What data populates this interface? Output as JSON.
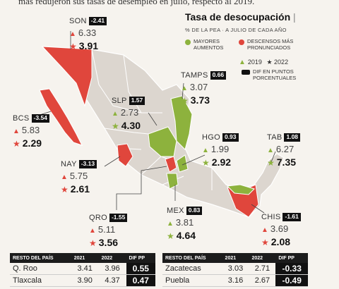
{
  "headline": "más redujeron sus tasas de desempleo en julio, respecto al 2019.",
  "legend": {
    "title": "Tasa de desocupación",
    "subtitle": "% DE LA PEA · A JULIO DE CADA AÑO",
    "increase_label": "MAYORES AUMENTOS",
    "decrease_label": "DESCENSOS MÁS PRONUNCIADOS",
    "year_2019": "2019",
    "year_2022": "2022",
    "dif_label": "DIF EN PUNTOS PORCENTUALES"
  },
  "colors": {
    "increase": "#8db23d",
    "decrease": "#e0463c",
    "map_base": "#dcd6cf",
    "highlight_black": "#111111"
  },
  "chart_data": {
    "type": "table",
    "description_units": "% de la PEA",
    "states": [
      {
        "key": "son",
        "name": "SON",
        "v2019": "6.33",
        "v2022": "3.91",
        "dif": "-2.41",
        "trend": "decrease"
      },
      {
        "key": "bcs",
        "name": "BCS",
        "v2019": "5.83",
        "v2022": "2.29",
        "dif": "-3.54",
        "trend": "decrease"
      },
      {
        "key": "nay",
        "name": "NAY",
        "v2019": "5.75",
        "v2022": "2.61",
        "dif": "-3.13",
        "trend": "decrease"
      },
      {
        "key": "qro",
        "name": "QRO",
        "v2019": "5.11",
        "v2022": "3.56",
        "dif": "-1.55",
        "trend": "decrease"
      },
      {
        "key": "slp",
        "name": "SLP",
        "v2019": "2.73",
        "v2022": "4.30",
        "dif": "1.57",
        "trend": "increase"
      },
      {
        "key": "tamps",
        "name": "TAMPS",
        "v2019": "3.07",
        "v2022": "3.73",
        "dif": "0.66",
        "trend": "increase"
      },
      {
        "key": "hgo",
        "name": "HGO",
        "v2019": "1.99",
        "v2022": "2.92",
        "dif": "0.93",
        "trend": "increase"
      },
      {
        "key": "tab",
        "name": "TAB",
        "v2019": "6.27",
        "v2022": "7.35",
        "dif": "1.08",
        "trend": "increase"
      },
      {
        "key": "mex",
        "name": "MEX",
        "v2019": "3.81",
        "v2022": "4.64",
        "dif": "0.83",
        "trend": "increase"
      },
      {
        "key": "chis",
        "name": "CHIS",
        "v2019": "3.69",
        "v2022": "2.08",
        "dif": "-1.61",
        "trend": "decrease"
      }
    ],
    "tables": [
      {
        "headers": [
          "RESTO DEL PAÍS",
          "2021",
          "2022",
          "DIF PP"
        ],
        "rows": [
          [
            "Q. Roo",
            "3.41",
            "3.96",
            "0.55"
          ],
          [
            "Tlaxcala",
            "3.90",
            "4.37",
            "0.47"
          ]
        ]
      },
      {
        "headers": [
          "RESTO DEL PAÍS",
          "2021",
          "2022",
          "DIF PP"
        ],
        "rows": [
          [
            "Zacatecas",
            "3.03",
            "2.71",
            "-0.33"
          ],
          [
            "Puebla",
            "3.16",
            "2.67",
            "-0.49"
          ]
        ]
      }
    ]
  }
}
